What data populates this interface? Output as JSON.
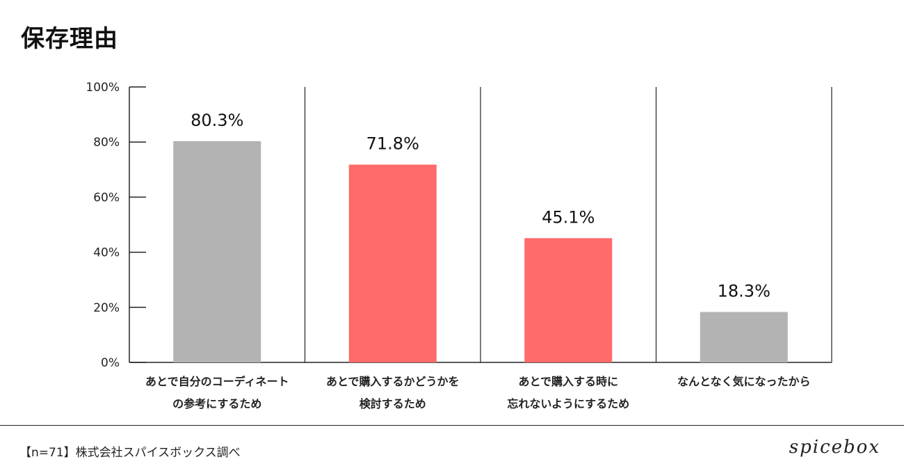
{
  "title": "保存理由",
  "footnote": "【n=71】株式会社スパイスボックス調べ",
  "brand": "spicebox",
  "chart_data": {
    "type": "bar",
    "categories": [
      [
        "あとで自分のコーディネート",
        "の参考にするため"
      ],
      [
        "あとで購入するかどうかを",
        "検討するため"
      ],
      [
        "あとで購入する時に",
        "忘れないようにするため"
      ],
      [
        "なんとなく気になったから"
      ]
    ],
    "values": [
      80.3,
      71.8,
      45.1,
      18.3
    ],
    "value_labels": [
      "80.3%",
      "71.8%",
      "45.1%",
      "18.3%"
    ],
    "bar_colors": [
      "#b3b3b3",
      "#ff6a6a",
      "#ff6a6a",
      "#b3b3b3"
    ],
    "ylim": [
      0,
      100
    ],
    "yticks": [
      0,
      20,
      40,
      60,
      80,
      100
    ],
    "ytick_labels": [
      "0%",
      "20%",
      "40%",
      "60%",
      "80%",
      "100%"
    ],
    "grid": false
  }
}
